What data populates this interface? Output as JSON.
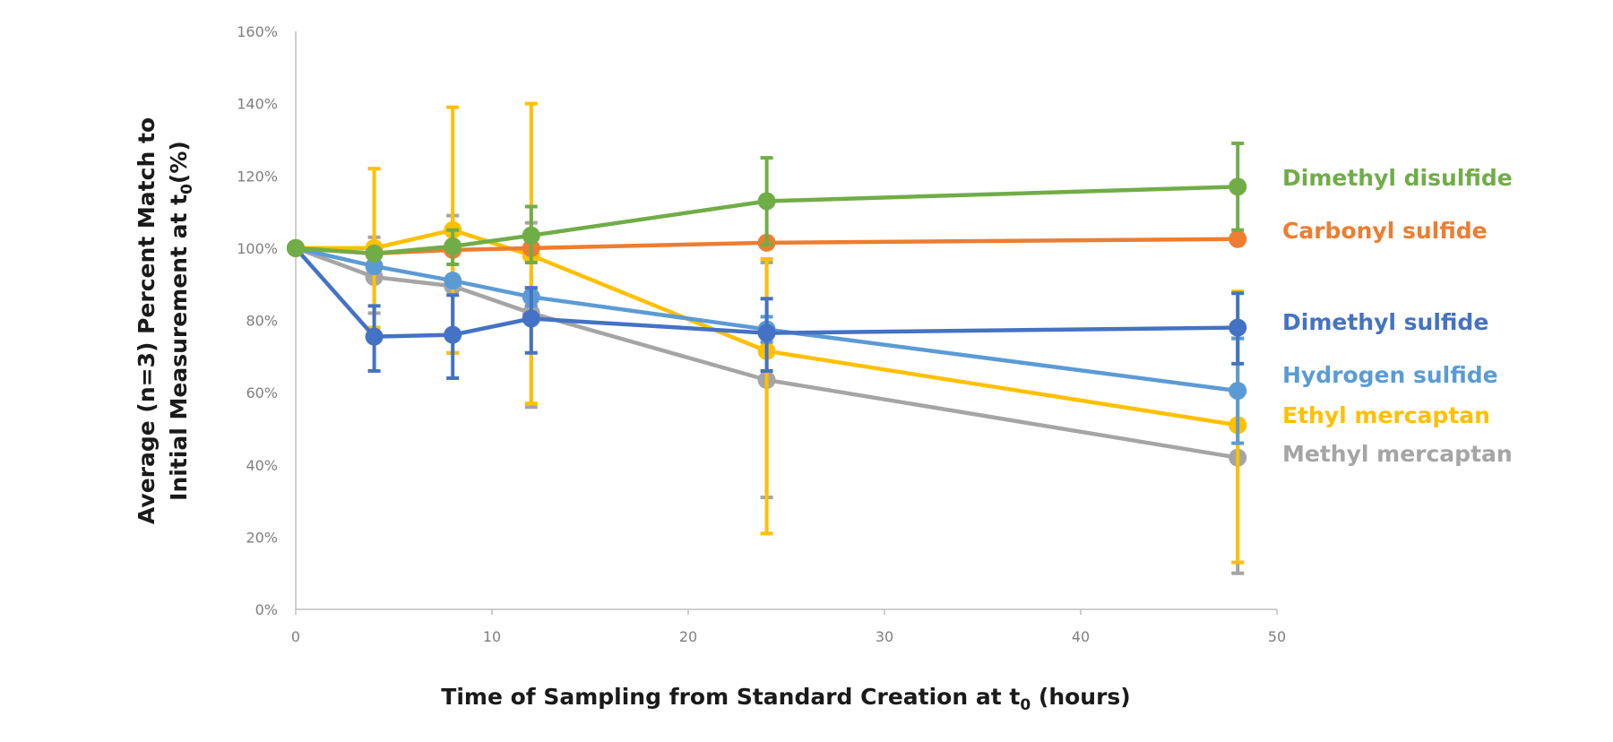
{
  "chart_data": {
    "type": "line",
    "xlabel_prefix": "Time of Sampling from Standard Creation at t",
    "xlabel_sub": "0",
    "xlabel_suffix": " (hours)",
    "ylabel_line1": "Average (n=3) Percent Match to",
    "ylabel_line2_prefix": "Initial Measurement at t",
    "ylabel_line2_sub": "0",
    "ylabel_line2_suffix": "(%)",
    "xlim": [
      0,
      50
    ],
    "ylim": [
      0,
      160
    ],
    "x_ticks": [
      0,
      10,
      20,
      30,
      40,
      50
    ],
    "y_ticks": [
      0,
      20,
      40,
      60,
      80,
      100,
      120,
      140,
      160
    ],
    "y_tick_labels": [
      "0%",
      "20%",
      "40%",
      "60%",
      "80%",
      "100%",
      "120%",
      "140%",
      "160%"
    ],
    "x_tick_labels": [
      "0",
      "10",
      "20",
      "30",
      "40",
      "50"
    ],
    "x": [
      0,
      4,
      8,
      12,
      24,
      48
    ],
    "series": [
      {
        "name": "Methyl mercaptan",
        "color": "#a5a5a5",
        "values": [
          100,
          92,
          89.5,
          82,
          63.5,
          42
        ],
        "error_low": [
          100,
          82,
          71,
          56,
          31,
          10
        ],
        "error_high": [
          100,
          103,
          109,
          107,
          96,
          75
        ]
      },
      {
        "name": "Ethyl mercaptan",
        "color": "#ffc000",
        "values": [
          100,
          100,
          105,
          98,
          71.5,
          51
        ],
        "error_low": [
          100,
          78,
          71,
          57,
          21,
          13
        ],
        "error_high": [
          100,
          122,
          139,
          140,
          97,
          88
        ]
      },
      {
        "name": "Hydrogen sulfide",
        "color": "#5b9bd5",
        "values": [
          100,
          95,
          91,
          86.5,
          77.5,
          60.5
        ],
        "error_low": [
          100,
          94,
          90,
          84,
          74,
          46
        ],
        "error_high": [
          100,
          96,
          92,
          89,
          81,
          75
        ]
      },
      {
        "name": "Dimethyl sulfide",
        "color": "#4472c4",
        "values": [
          100,
          75.5,
          76,
          80.5,
          76.5,
          78
        ],
        "error_low": [
          100,
          66,
          64,
          71,
          66,
          68
        ],
        "error_high": [
          100,
          84,
          87,
          89,
          86,
          87.5
        ]
      },
      {
        "name": "Carbonyl sulfide",
        "color": "#ed7d31",
        "values": [
          100,
          98.5,
          99.5,
          100,
          101.5,
          102.5
        ],
        "error_low": [
          100,
          98.5,
          99.5,
          100,
          101.5,
          102.5
        ],
        "error_high": [
          100,
          98.5,
          99.5,
          100,
          101.5,
          102.5
        ]
      },
      {
        "name": "Dimethyl disulfide",
        "color": "#70ad47",
        "values": [
          100,
          98.5,
          100.5,
          103.5,
          113,
          117
        ],
        "error_low": [
          100,
          98.5,
          95.5,
          96,
          101,
          105
        ],
        "error_high": [
          100,
          98.5,
          105,
          111.5,
          125,
          129
        ]
      }
    ],
    "labels": [
      {
        "text": "Dimethyl disulfide",
        "color": "#70ad47"
      },
      {
        "text": "Carbonyl sulfide",
        "color": "#ed7d31"
      },
      {
        "text": "Dimethyl sulfide",
        "color": "#4472c4"
      },
      {
        "text": "Hydrogen sulfide",
        "color": "#5b9bd5"
      },
      {
        "text": "Ethyl mercaptan",
        "color": "#ffc000"
      },
      {
        "text": "Methyl mercaptan",
        "color": "#a5a5a5"
      }
    ]
  }
}
